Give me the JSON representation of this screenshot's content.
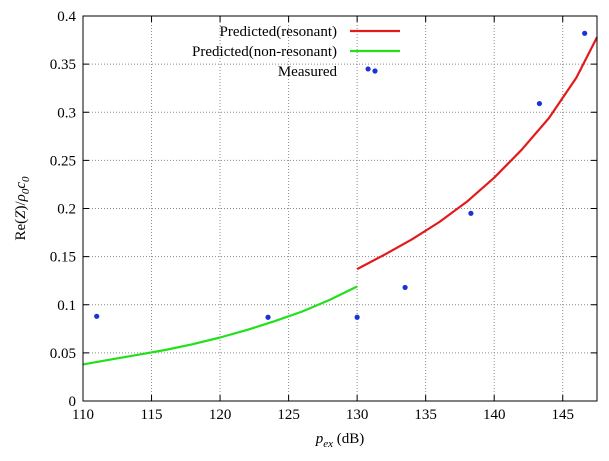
{
  "chart_data": {
    "type": "line",
    "xlabel": {
      "main": "p",
      "sub": "ex",
      "unit": " (dB)"
    },
    "ylabel": {
      "prefix": "Re(",
      "z": "Z",
      "mid": ")/",
      "rho": "ρ",
      "rho_sub": "0",
      "c": "c",
      "c_sub": "0"
    },
    "xlim": [
      110,
      147.5
    ],
    "ylim": [
      0,
      0.4
    ],
    "x_ticks": [
      110,
      115,
      120,
      125,
      130,
      135,
      140,
      145
    ],
    "y_ticks": [
      0,
      0.05,
      0.1,
      0.15,
      0.2,
      0.25,
      0.3,
      0.35,
      0.4
    ],
    "x_tick_labels": [
      "110",
      "115",
      "120",
      "125",
      "130",
      "135",
      "140",
      "145"
    ],
    "y_tick_labels": [
      "0",
      "0.05",
      "0.1",
      "0.15",
      "0.2",
      "0.25",
      "0.3",
      "0.35",
      "0.4"
    ],
    "grid": true,
    "legend_position": "top-right",
    "series": [
      {
        "name": "Predicted(resonant)",
        "kind": "line",
        "color": "#e31a1c",
        "x": [
          130,
          132,
          134,
          136,
          138,
          140,
          142,
          144,
          146,
          147.5
        ],
        "y": [
          0.137,
          0.152,
          0.168,
          0.186,
          0.207,
          0.232,
          0.261,
          0.294,
          0.336,
          0.378
        ]
      },
      {
        "name": "Predicted(non-resonant)",
        "kind": "line",
        "color": "#22e01a",
        "x": [
          110,
          112,
          114,
          116,
          118,
          120,
          122,
          124,
          126,
          128,
          130
        ],
        "y": [
          0.038,
          0.043,
          0.048,
          0.053,
          0.059,
          0.066,
          0.074,
          0.083,
          0.093,
          0.105,
          0.119
        ]
      },
      {
        "name": "Measured",
        "kind": "scatter",
        "color": "#1a33d6",
        "x": [
          111,
          123.5,
          130,
          130.8,
          133.5,
          138.3,
          143.3,
          146.6
        ],
        "y": [
          0.088,
          0.087,
          0.087,
          0.345,
          0.118,
          0.195,
          0.309,
          0.382
        ]
      }
    ]
  }
}
